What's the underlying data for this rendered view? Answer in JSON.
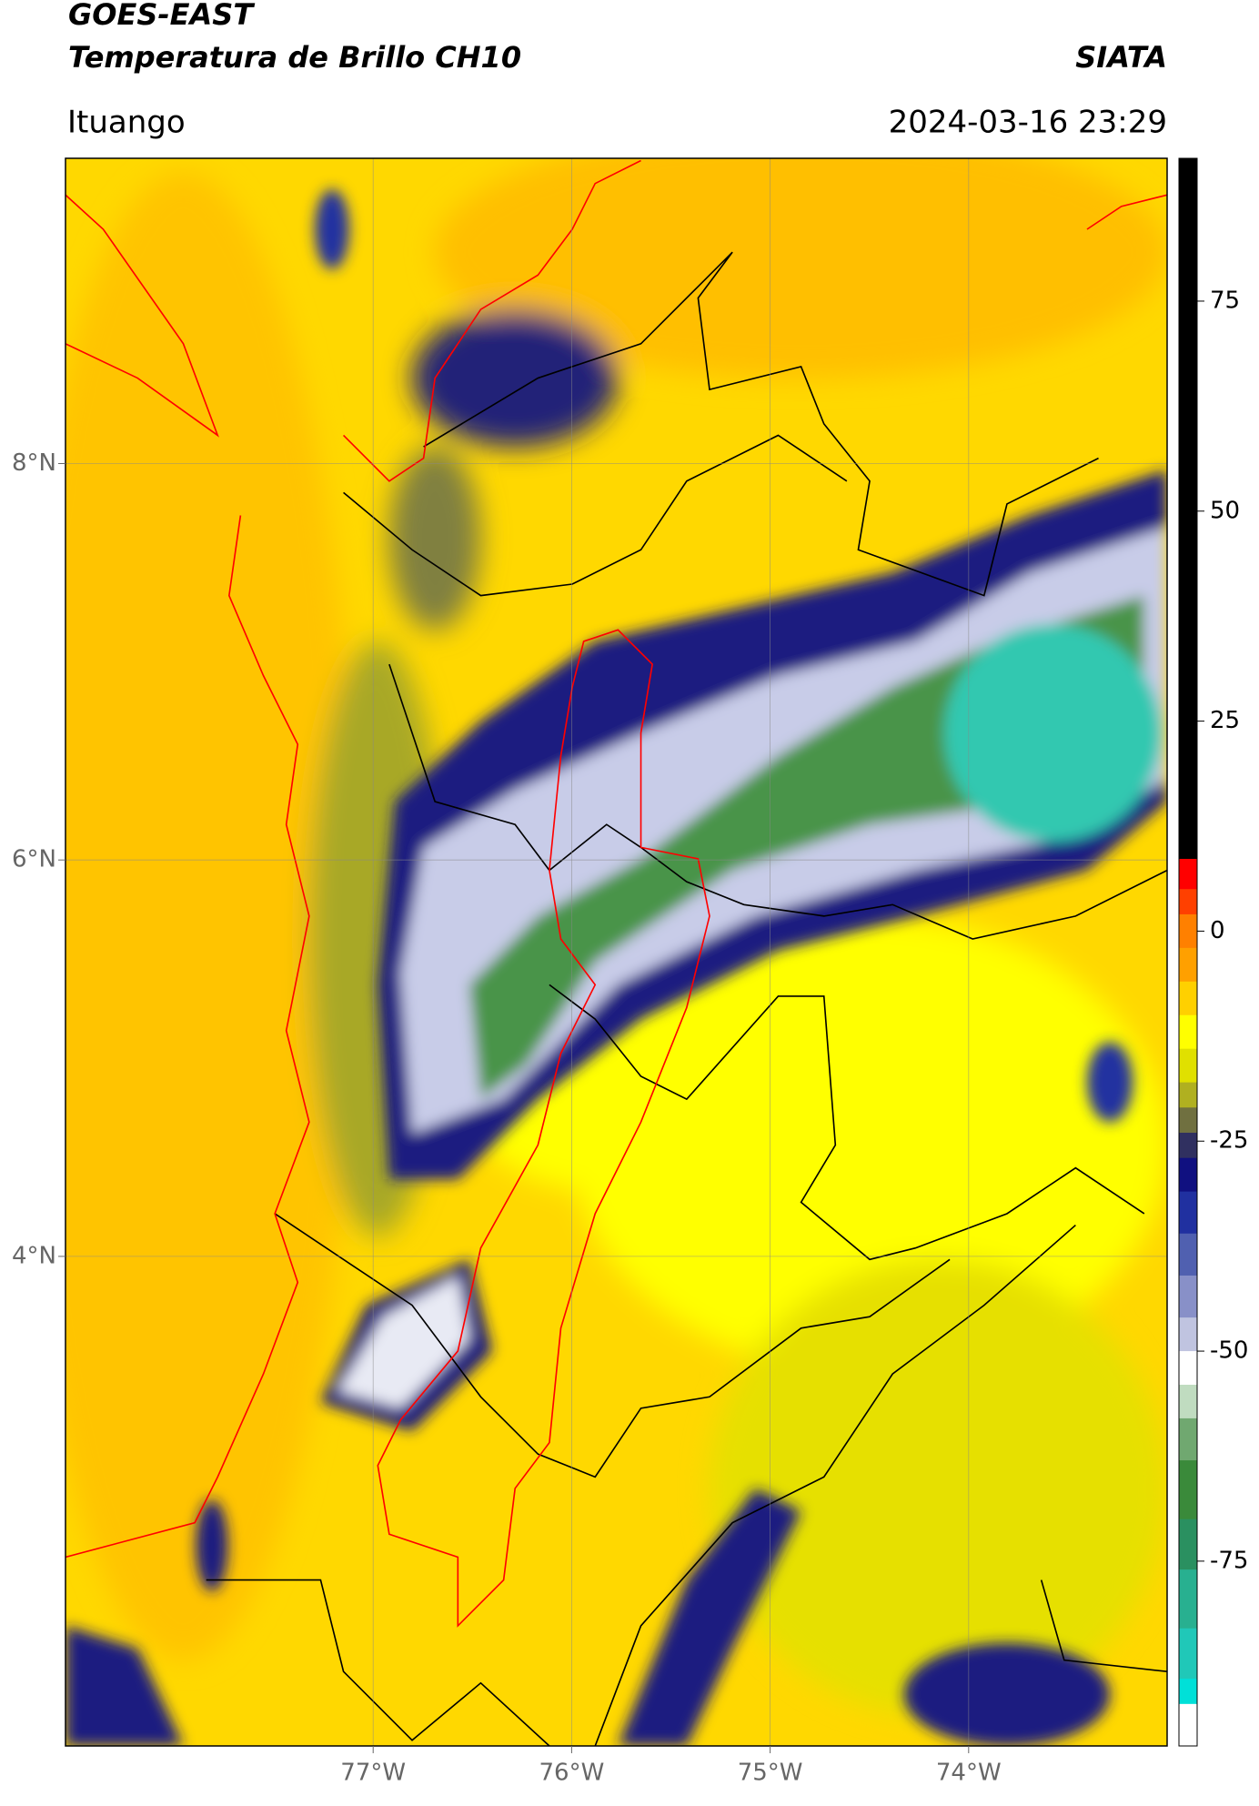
{
  "chart_data": {
    "type": "map",
    "title": "GOES-EAST",
    "subtitle": "Temperatura de Brillo CH10",
    "source": "SIATA",
    "location": "Ituango",
    "datetime": "2024-03-16 23:29",
    "xlim": [
      -78.55,
      -73.0
    ],
    "ylim": [
      1.53,
      9.54
    ],
    "xticks": [
      {
        "value": -77,
        "label": "77°W"
      },
      {
        "value": -76,
        "label": "76°W"
      },
      {
        "value": -75,
        "label": "75°W"
      },
      {
        "value": -74,
        "label": "74°W"
      }
    ],
    "yticks": [
      {
        "value": 8,
        "label": "8°N"
      },
      {
        "value": 6,
        "label": "6°N"
      },
      {
        "value": 4,
        "label": "4°N"
      }
    ],
    "grid": true,
    "colorbar": {
      "clim": [
        -97,
        92
      ],
      "ticks": [
        75,
        50,
        25,
        0,
        -25,
        -50,
        -75
      ],
      "colormap": [
        {
          "value": 92,
          "color": "#000000"
        },
        {
          "value": 8.6,
          "color": "#ff0000"
        },
        {
          "value": 5,
          "color": "#ff4000"
        },
        {
          "value": 2,
          "color": "#ff8000"
        },
        {
          "value": -2,
          "color": "#ffa000"
        },
        {
          "value": -6,
          "color": "#ffd000"
        },
        {
          "value": -10,
          "color": "#ffff00"
        },
        {
          "value": -14,
          "color": "#e0e000"
        },
        {
          "value": -18,
          "color": "#b0b020"
        },
        {
          "value": -21,
          "color": "#707040"
        },
        {
          "value": -24,
          "color": "#303060"
        },
        {
          "value": -27,
          "color": "#101080"
        },
        {
          "value": -31,
          "color": "#2030a0"
        },
        {
          "value": -36,
          "color": "#5060b0"
        },
        {
          "value": -41,
          "color": "#8890c8"
        },
        {
          "value": -46,
          "color": "#c0c4e0"
        },
        {
          "value": -50,
          "color": "#ffffff"
        },
        {
          "value": -54,
          "color": "#c0dcc0"
        },
        {
          "value": -58,
          "color": "#70a870"
        },
        {
          "value": -63,
          "color": "#3a8a3a"
        },
        {
          "value": -70,
          "color": "#2a9060"
        },
        {
          "value": -76,
          "color": "#28b090"
        },
        {
          "value": -83,
          "color": "#20c8b8"
        },
        {
          "value": -89,
          "color": "#00e0d8"
        },
        {
          "value": -92,
          "color": "#ffffff"
        }
      ]
    }
  }
}
